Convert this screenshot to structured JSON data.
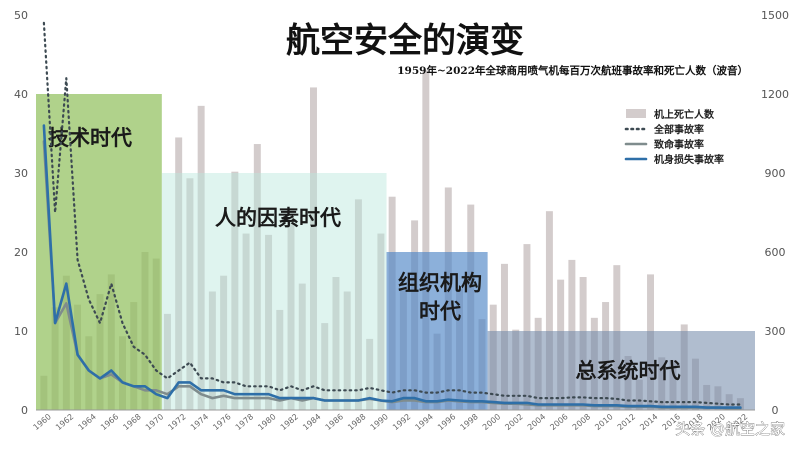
{
  "chart_data": {
    "type": "bar",
    "title": "航空安全的演变",
    "subtitle": "1959年~2022年全球商用喷气机每百万次航班事故率和死亡人数（波音）",
    "years": [
      1960,
      1961,
      1962,
      1963,
      1964,
      1965,
      1966,
      1967,
      1968,
      1969,
      1970,
      1971,
      1972,
      1973,
      1974,
      1975,
      1976,
      1977,
      1978,
      1979,
      1980,
      1981,
      1982,
      1983,
      1984,
      1985,
      1986,
      1987,
      1988,
      1989,
      1990,
      1991,
      1992,
      1993,
      1994,
      1995,
      1996,
      1997,
      1998,
      1999,
      2000,
      2001,
      2002,
      2003,
      2004,
      2005,
      2006,
      2007,
      2008,
      2009,
      2010,
      2011,
      2012,
      2013,
      2014,
      2015,
      2016,
      2017,
      2018,
      2019,
      2020,
      2021,
      2022
    ],
    "x_tick_labels": [
      "1960",
      "1962",
      "1964",
      "1966",
      "1968",
      "1970",
      "1972",
      "1974",
      "1976",
      "1978",
      "1980",
      "1982",
      "1984",
      "1986",
      "1988",
      "1990",
      "1992",
      "1994",
      "1996",
      "1998",
      "2000",
      "2002",
      "2004",
      "2006",
      "2008",
      "2010",
      "2012",
      "2014",
      "2016",
      "2018",
      "2020",
      "2022"
    ],
    "y_left": {
      "ylim": [
        0,
        50
      ],
      "ticks": [
        "0",
        "10",
        "20",
        "30",
        "40",
        "50"
      ]
    },
    "y_right": {
      "ylim": [
        0,
        1500
      ],
      "ticks": [
        "0",
        "300",
        "600",
        "900",
        "1200",
        "1500"
      ]
    },
    "series": [
      {
        "name": "机上死亡人数",
        "kind": "bar",
        "axis": "right",
        "color": "#d3cccc",
        "values": [
          130,
          390,
          510,
          400,
          280,
          440,
          515,
          280,
          410,
          600,
          575,
          365,
          1035,
          880,
          1155,
          450,
          510,
          905,
          670,
          1010,
          665,
          380,
          720,
          480,
          1225,
          330,
          505,
          450,
          800,
          270,
          670,
          810,
          455,
          720,
          1290,
          290,
          845,
          460,
          780,
          345,
          400,
          555,
          305,
          630,
          350,
          755,
          495,
          570,
          505,
          350,
          410,
          550,
          205,
          115,
          515,
          200,
          190,
          325,
          195,
          95,
          90,
          60,
          45
        ]
      },
      {
        "name": "全部事故率",
        "kind": "line",
        "style": "dotted",
        "axis": "left",
        "color": "#3d4a52",
        "values": [
          49,
          25,
          42,
          19,
          14,
          11,
          16,
          11,
          8,
          7,
          5,
          4,
          5,
          6,
          4,
          4,
          3.5,
          3.5,
          3,
          3,
          3,
          2.5,
          3,
          2.5,
          3,
          2.5,
          2.5,
          2.5,
          2.5,
          2.8,
          2.5,
          2.2,
          2.5,
          2.5,
          2.2,
          2.2,
          2.5,
          2.5,
          2.2,
          2.2,
          2,
          1.8,
          1.8,
          1.8,
          1.5,
          1.5,
          1.5,
          1.6,
          1.6,
          1.5,
          1.5,
          1.4,
          1.2,
          1.2,
          1.1,
          1,
          1,
          1,
          1,
          0.9,
          0.8,
          0.7,
          0.7
        ]
      },
      {
        "name": "致命事故率",
        "kind": "line",
        "axis": "left",
        "color": "#7f8c8d",
        "values": [
          34,
          11,
          13.5,
          7,
          5,
          4,
          4.5,
          3.5,
          3,
          2.5,
          2.5,
          2,
          3,
          3,
          2,
          1.5,
          1.8,
          1.5,
          1.5,
          1.5,
          1.5,
          1.2,
          1.5,
          1.2,
          1.5,
          1.2,
          1.2,
          1.2,
          1.2,
          1.4,
          1.2,
          1,
          1.2,
          1.2,
          1,
          1,
          1.2,
          1.1,
          1,
          1,
          0.9,
          0.8,
          0.8,
          0.7,
          0.6,
          0.6,
          0.6,
          0.6,
          0.6,
          0.5,
          0.5,
          0.5,
          0.4,
          0.4,
          0.4,
          0.3,
          0.3,
          0.3,
          0.3,
          0.3,
          0.3,
          0.2,
          0.2
        ]
      },
      {
        "name": "机身损失事故率",
        "kind": "line",
        "axis": "left",
        "color": "#2e6fa8",
        "values": [
          36,
          11,
          16,
          7,
          5,
          4,
          5,
          3.5,
          3,
          3,
          2,
          1.5,
          3.5,
          3.5,
          2.5,
          2.5,
          2.5,
          2,
          2,
          2,
          2,
          1.5,
          1.5,
          1.5,
          1.5,
          1.2,
          1.2,
          1.2,
          1.2,
          1.5,
          1.2,
          1.1,
          1.5,
          1.5,
          1.1,
          1.1,
          1.3,
          1.2,
          1.1,
          1.1,
          1,
          0.9,
          0.9,
          0.9,
          0.7,
          0.7,
          0.7,
          0.7,
          0.7,
          0.6,
          0.6,
          0.6,
          0.5,
          0.5,
          0.5,
          0.4,
          0.4,
          0.4,
          0.4,
          0.3,
          0.3,
          0.3,
          0.3
        ]
      }
    ],
    "eras": [
      {
        "label": "技术时代",
        "label_lines": [
          "技术时代"
        ],
        "x_start": 1959.3,
        "x_end": 1970.5,
        "y_top": 40,
        "color": "#8fbf5a",
        "opacity": 0.7,
        "font_size": 21
      },
      {
        "label": "人的因素时代",
        "label_lines": [
          "人的因素时代"
        ],
        "x_start": 1970.5,
        "x_end": 1990.5,
        "y_top": 30,
        "color": "#b8e6dc",
        "opacity": 0.45,
        "font_size": 21
      },
      {
        "label": "组织机构时代",
        "label_lines": [
          "组织机构",
          "时代"
        ],
        "x_start": 1990.5,
        "x_end": 1999.5,
        "y_top": 20,
        "color": "#4f86c6",
        "opacity": 0.65,
        "font_size": 21
      },
      {
        "label": "总系统时代",
        "label_lines": [
          "总系统时代"
        ],
        "x_start": 1999.5,
        "x_end": 2023.3,
        "y_top": 10,
        "color": "#6f87a8",
        "opacity": 0.55,
        "font_size": 21
      }
    ],
    "legend_position": "top-right",
    "grid": false
  },
  "watermark": "头条 @航空之家"
}
